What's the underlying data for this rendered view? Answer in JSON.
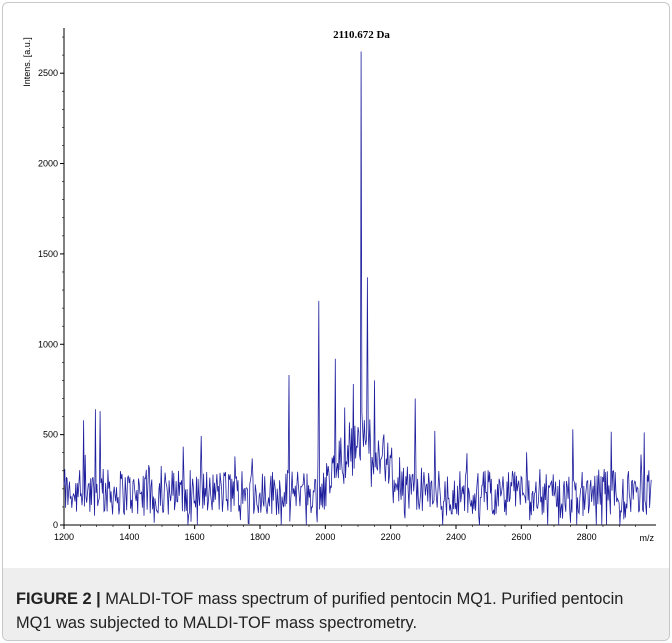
{
  "figure": {
    "label": "FIGURE 2 |",
    "caption": "MALDI-TOF mass spectrum of purified pentocin MQ1. Purified pentocin MQ1 was subjected to MALDI-TOF mass spectrometry."
  },
  "chart_data": {
    "type": "line",
    "ylabel": "Intens. [a.u.]",
    "xlabel": "m/z",
    "annotation": "2110.672 Da",
    "annotation_x": 2110.672,
    "xlim": [
      1200,
      3000
    ],
    "ylim": [
      0,
      2750
    ],
    "xticks": [
      1200,
      1400,
      1600,
      1800,
      2000,
      2200,
      2400,
      2600,
      2800
    ],
    "yticks": [
      0,
      500,
      1000,
      1500,
      2000,
      2500
    ],
    "line_color": "#1f1f9e",
    "peaks": [
      {
        "x": 2110.672,
        "y": 2620
      },
      {
        "x": 2130,
        "y": 1370
      },
      {
        "x": 1980,
        "y": 1240
      },
      {
        "x": 2030,
        "y": 920
      },
      {
        "x": 1890,
        "y": 830
      },
      {
        "x": 2150,
        "y": 800
      },
      {
        "x": 2085,
        "y": 780
      },
      {
        "x": 2275,
        "y": 700
      },
      {
        "x": 1295,
        "y": 640
      },
      {
        "x": 1310,
        "y": 630
      },
      {
        "x": 2060,
        "y": 650
      },
      {
        "x": 1260,
        "y": 580
      }
    ],
    "baseline_level": 180
  }
}
